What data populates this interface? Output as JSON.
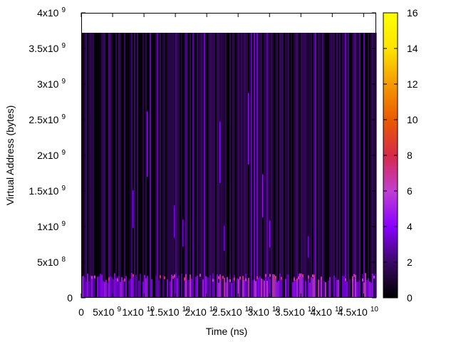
{
  "chart_data": {
    "type": "heatmap",
    "title": "",
    "xlabel": "Time (ns)",
    "ylabel": "Virtual Address (bytes)",
    "xlim": [
      0,
      47000000000.0
    ],
    "ylim": [
      0,
      4000000000.0
    ],
    "data_extent": {
      "x": [
        0,
        47000000000.0
      ],
      "y": [
        0,
        3720000000.0
      ]
    },
    "x_ticks": [
      {
        "value": 0,
        "label": "0",
        "exp": ""
      },
      {
        "value": 5000000000.0,
        "label": "5x10",
        "exp": "9"
      },
      {
        "value": 10000000000.0,
        "label": "1x10",
        "exp": "10"
      },
      {
        "value": 15000000000.0,
        "label": "1.5x10",
        "exp": "10"
      },
      {
        "value": 20000000000.0,
        "label": "2x10",
        "exp": "10"
      },
      {
        "value": 25000000000.0,
        "label": "2.5x10",
        "exp": "10"
      },
      {
        "value": 30000000000.0,
        "label": "3x10",
        "exp": "10"
      },
      {
        "value": 35000000000.0,
        "label": "3.5x10",
        "exp": "10"
      },
      {
        "value": 40000000000.0,
        "label": "4x10",
        "exp": "10"
      },
      {
        "value": 45000000000.0,
        "label": "4.5x10",
        "exp": "10"
      }
    ],
    "y_ticks": [
      {
        "value": 0,
        "label": "0",
        "exp": ""
      },
      {
        "value": 500000000.0,
        "label": "5x10",
        "exp": "8"
      },
      {
        "value": 1000000000.0,
        "label": "1x10",
        "exp": "9"
      },
      {
        "value": 1500000000.0,
        "label": "1.5x10",
        "exp": "9"
      },
      {
        "value": 2000000000.0,
        "label": "2x10",
        "exp": "9"
      },
      {
        "value": 2500000000.0,
        "label": "2.5x10",
        "exp": "9"
      },
      {
        "value": 3000000000.0,
        "label": "3x10",
        "exp": "9"
      },
      {
        "value": 3500000000.0,
        "label": "3.5x10",
        "exp": "9"
      },
      {
        "value": 4000000000.0,
        "label": "4x10",
        "exp": "9"
      }
    ],
    "colorbar": {
      "range": [
        0,
        16
      ],
      "ticks": [
        0,
        2,
        4,
        6,
        8,
        10,
        12,
        14,
        16
      ],
      "palette": [
        "#000000",
        "#3a0a66",
        "#8a00ff",
        "#c13fd2",
        "#d72a4a",
        "#ea5a00",
        "#f49a00",
        "#fde400",
        "#ffff00"
      ]
    },
    "grid": false,
    "legend": "colorbar-right"
  }
}
